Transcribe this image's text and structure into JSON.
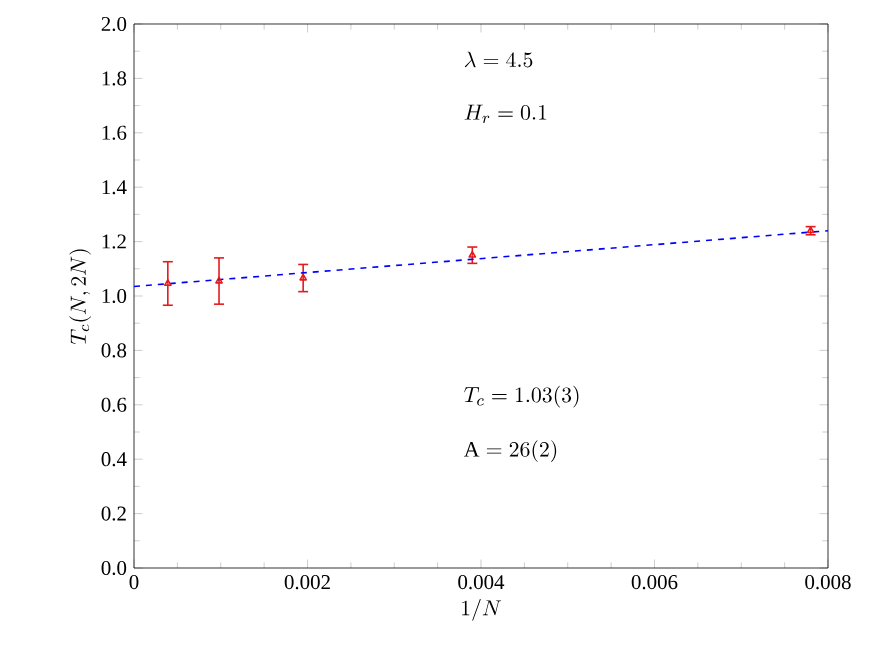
{
  "chart_data": {
    "type": "scatter",
    "xlabel": "1/N",
    "ylabel": "T_c(N,2N)",
    "annotations": [
      "\\lambda = 4.5",
      "H_r = 0.1",
      "T_c = 1.03(3)",
      "\\mathrm{A} = 26(2)"
    ],
    "series": [
      {
        "color": "#e41a1c",
        "x": [
          0.00039,
          0.00098,
          0.00195,
          0.0039,
          0.0078
        ],
        "values": [
          1.046,
          1.055,
          1.066,
          1.15,
          1.24
        ],
        "errors": [
          0.08,
          0.085,
          0.05,
          0.03,
          0.015
        ],
        "marker": "triangle"
      },
      {
        "type": "line",
        "color": "#0000ff",
        "x": [
          0,
          0.008
        ],
        "values": [
          1.035,
          1.24
        ],
        "line_style": "dashed",
        "marker": "none"
      }
    ],
    "xlim": [
      0,
      0.008
    ],
    "xticks": [
      0,
      0.002,
      0.004,
      0.006,
      0.008
    ],
    "ylim": [
      0,
      2
    ],
    "yticks": [
      {
        "value": 0,
        "label": "0.0"
      },
      {
        "value": 0.2,
        "label": "0.2"
      },
      {
        "value": 0.4,
        "label": "0.4"
      },
      {
        "value": 0.6,
        "label": "0.6"
      },
      {
        "value": 0.8,
        "label": "0.8"
      },
      {
        "value": 1.0,
        "label": "1.0"
      },
      {
        "value": 1.2,
        "label": "1.2"
      },
      {
        "value": 1.4,
        "label": "1.4"
      },
      {
        "value": 1.6,
        "label": "1.6"
      },
      {
        "value": 1.8,
        "label": "1.8"
      },
      {
        "value": 2,
        "label": "2.0"
      }
    ],
    "grid": false
  }
}
